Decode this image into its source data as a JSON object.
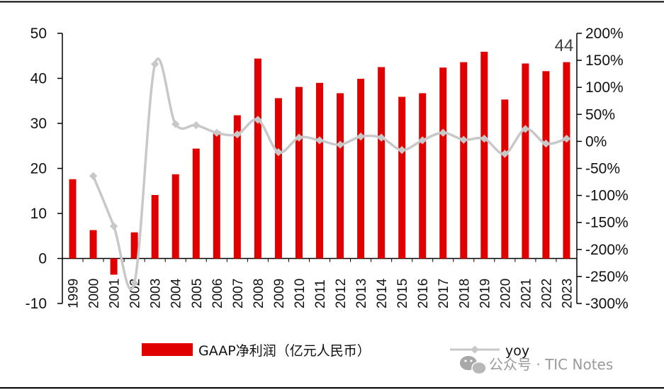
{
  "chart_data": {
    "type": "bar",
    "categories": [
      "1999",
      "2000",
      "2001",
      "2002",
      "2003",
      "2004",
      "2005",
      "2006",
      "2007",
      "2008",
      "2009",
      "2010",
      "2011",
      "2012",
      "2013",
      "2014",
      "2015",
      "2016",
      "2017",
      "2018",
      "2019",
      "2020",
      "2021",
      "2022",
      "2023"
    ],
    "series": [
      {
        "name": "GAAP净利润（亿元人民币）",
        "type": "bar",
        "axis": "left",
        "color": "#e00000",
        "values": [
          17.6,
          6.3,
          -3.6,
          5.8,
          14.1,
          18.7,
          24.4,
          28.2,
          31.8,
          44.4,
          35.6,
          38.1,
          39.0,
          36.7,
          39.9,
          42.5,
          35.9,
          36.7,
          42.4,
          43.6,
          45.9,
          35.3,
          43.3,
          41.6,
          43.6
        ]
      },
      {
        "name": "yoy",
        "type": "line",
        "axis": "right",
        "color": "#c8c8c8",
        "values": [
          null,
          -64,
          -157,
          -262,
          143,
          32,
          30,
          16,
          13,
          40,
          -20,
          7,
          2,
          -6,
          9,
          7,
          -16,
          2,
          16,
          3,
          5,
          -23,
          23,
          -4,
          5
        ]
      }
    ],
    "y_left": {
      "min": -10,
      "max": 50,
      "ticks": [
        "50",
        "40",
        "30",
        "20",
        "10",
        "0",
        "-10"
      ]
    },
    "y_right": {
      "min": -300,
      "max": 200,
      "ticks": [
        "200%",
        "150%",
        "100%",
        "50%",
        "0%",
        "-50%",
        "-100%",
        "-150%",
        "-200%",
        "-250%",
        "-300%"
      ]
    },
    "annotation": "44",
    "grid": false,
    "legend_placement": "bottom"
  },
  "watermark": {
    "text": "公众号 · TIC Notes",
    "icon": "wechat-icon"
  }
}
